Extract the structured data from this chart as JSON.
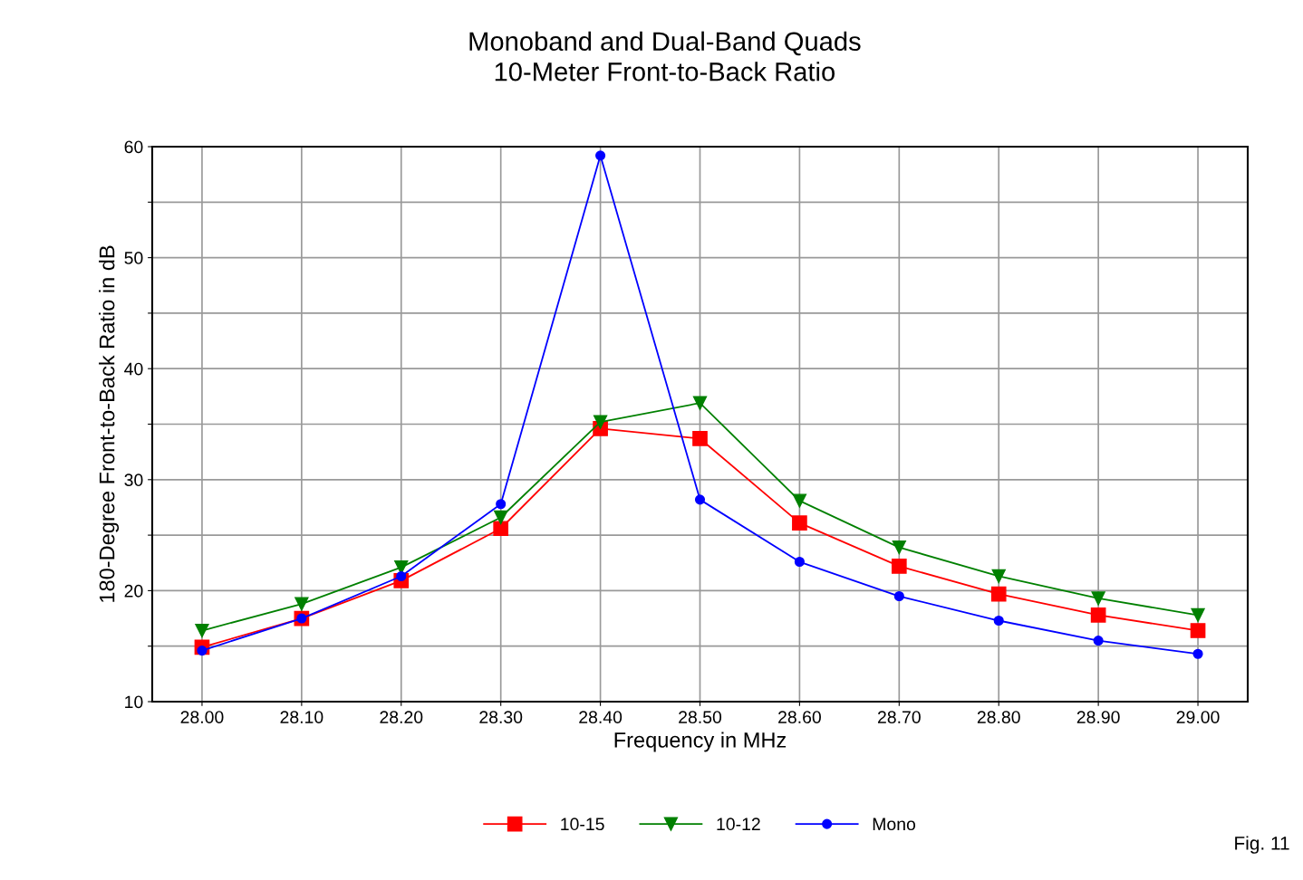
{
  "chart_data": {
    "type": "line",
    "title": "Monoband and Dual-Band Quads\n10-Meter Front-to-Back Ratio",
    "xlabel": "Frequency in MHz",
    "ylabel": "180-Degree Front-to-Back Ratio in dB",
    "x": [
      28.0,
      28.1,
      28.2,
      28.3,
      28.4,
      28.5,
      28.6,
      28.7,
      28.8,
      28.9,
      29.0
    ],
    "series": [
      {
        "name": "10-15",
        "color": "#ff0000",
        "marker": "square",
        "values": [
          14.9,
          17.5,
          20.9,
          25.6,
          34.6,
          33.7,
          26.1,
          22.2,
          19.7,
          17.8,
          16.4
        ]
      },
      {
        "name": "10-12",
        "color": "#008000",
        "marker": "triangle",
        "values": [
          16.4,
          18.8,
          22.1,
          26.6,
          35.2,
          36.9,
          28.1,
          23.9,
          21.3,
          19.3,
          17.8
        ]
      },
      {
        "name": "Mono",
        "color": "#0000ff",
        "marker": "circle",
        "values": [
          14.6,
          17.5,
          21.3,
          27.8,
          59.2,
          28.2,
          22.6,
          19.5,
          17.3,
          15.5,
          14.3
        ]
      }
    ],
    "xlim": [
      27.95,
      29.05
    ],
    "xticks": [
      {
        "value": 28.0,
        "label": "28.00"
      },
      {
        "value": 28.1,
        "label": "28.10"
      },
      {
        "value": 28.2,
        "label": "28.20"
      },
      {
        "value": 28.3,
        "label": "28.30"
      },
      {
        "value": 28.4,
        "label": "28.40"
      },
      {
        "value": 28.5,
        "label": "28.50"
      },
      {
        "value": 28.6,
        "label": "28.60"
      },
      {
        "value": 28.7,
        "label": "28.70"
      },
      {
        "value": 28.8,
        "label": "28.80"
      },
      {
        "value": 28.9,
        "label": "28.90"
      },
      {
        "value": 29.0,
        "label": "29.00"
      }
    ],
    "ylim": [
      10,
      60
    ],
    "yticks": [
      10,
      {
        "value": 15,
        "label": null
      },
      20,
      {
        "value": 25,
        "label": null
      },
      30,
      {
        "value": 35,
        "label": null
      },
      40,
      {
        "value": 45,
        "label": null
      },
      50,
      {
        "value": 55,
        "label": null
      },
      60
    ],
    "grid": true,
    "legend": "bottom",
    "line_style": "solid",
    "annotations": [
      "Fig. 11"
    ]
  }
}
